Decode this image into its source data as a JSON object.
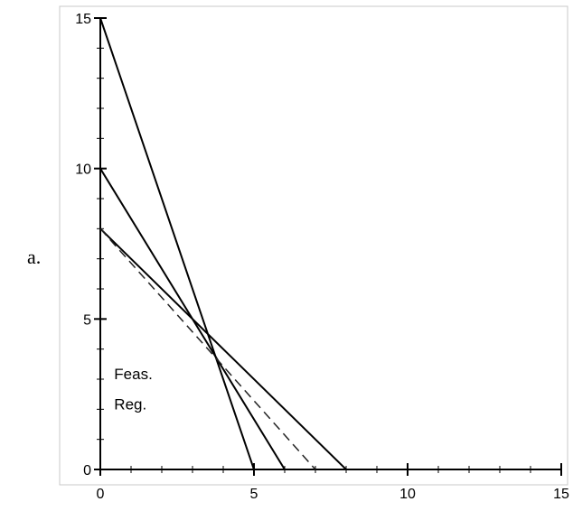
{
  "figure_label": "a.",
  "chart_data": {
    "type": "line",
    "title": "",
    "xlabel": "",
    "ylabel": "",
    "xlim": [
      0,
      15
    ],
    "ylim": [
      0,
      15
    ],
    "xticks": [
      0,
      5,
      10,
      15
    ],
    "yticks": [
      0,
      5,
      10,
      15
    ],
    "grid": false,
    "series": [
      {
        "style": "solid",
        "x": [
          0,
          5
        ],
        "y": [
          15,
          0
        ]
      },
      {
        "style": "solid",
        "x": [
          0,
          6
        ],
        "y": [
          10,
          0
        ]
      },
      {
        "style": "solid",
        "x": [
          0,
          8
        ],
        "y": [
          8,
          0
        ]
      },
      {
        "style": "dashed",
        "x": [
          0,
          7
        ],
        "y": [
          8,
          0
        ]
      }
    ],
    "annotations": [
      {
        "text": "Feas.",
        "x": 0.45,
        "y": 3.0
      },
      {
        "text": "Reg.",
        "x": 0.45,
        "y": 2.0
      }
    ]
  }
}
